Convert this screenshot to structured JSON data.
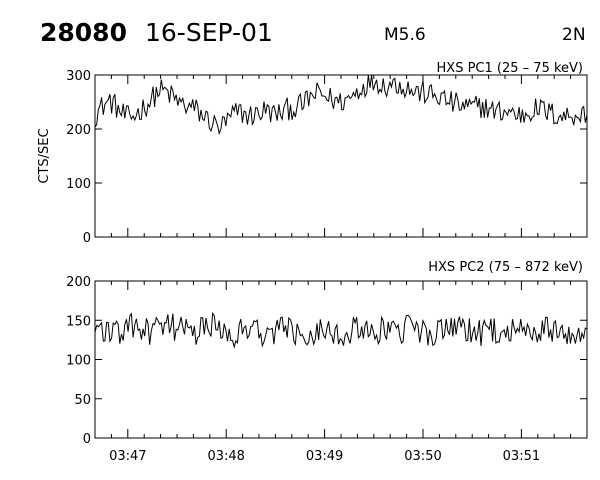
{
  "header": {
    "event_id": "28080",
    "date": "16-SEP-01",
    "flare_class": "M5.6",
    "location": "2N"
  },
  "chart_data": [
    {
      "type": "line",
      "title": "HXS PC1 (25 – 75 keV)",
      "ylabel": "CTS/SEC",
      "xlabel": "",
      "xlim": [
        "03:46:40",
        "03:51:40"
      ],
      "ylim": [
        0,
        300
      ],
      "yticks": [
        0,
        100,
        200,
        300
      ],
      "xticks": [
        "03:47",
        "03:48",
        "03:49",
        "03:50",
        "03:51"
      ],
      "grid": false,
      "series": [
        {
          "values": [
            225,
            238,
            246,
            252,
            244,
            232,
            224,
            220,
            226,
            233,
            242,
            250,
            262,
            272,
            270,
            264,
            256,
            248,
            244,
            240,
            238,
            230,
            222,
            216,
            208,
            203,
            208,
            218,
            228,
            232,
            228,
            224,
            226,
            230,
            234,
            232,
            228,
            228,
            232,
            238,
            238,
            242,
            246,
            256,
            262,
            266,
            262,
            258,
            254,
            250,
            252,
            256,
            264,
            272,
            280,
            286,
            290,
            288,
            282,
            282,
            284,
            284,
            279,
            276,
            270,
            268,
            268,
            264,
            262,
            260,
            256,
            252,
            248,
            245,
            242,
            240,
            240,
            242,
            242,
            238,
            234,
            232,
            232,
            233,
            230,
            226,
            226,
            230,
            236,
            237,
            236,
            232,
            228,
            226,
            224,
            224,
            226,
            228,
            226,
            226
          ]
        }
      ]
    },
    {
      "type": "line",
      "title": "HXS PC2 (75 – 872 keV)",
      "ylabel": "",
      "xlabel": "",
      "xlim": [
        "03:46:40",
        "03:51:40"
      ],
      "ylim": [
        0,
        200
      ],
      "yticks": [
        0,
        50,
        100,
        150,
        200
      ],
      "xticks": [
        "03:47",
        "03:48",
        "03:49",
        "03:50",
        "03:51"
      ],
      "grid": false,
      "series": [
        {
          "values": [
            138,
            140,
            138,
            135,
            132,
            135,
            138,
            140,
            142,
            140,
            136,
            134,
            136,
            138,
            140,
            142,
            141,
            138,
            136,
            135,
            134,
            136,
            138,
            141,
            143,
            140,
            137,
            135,
            134,
            136,
            138,
            140,
            138,
            136,
            134,
            135,
            137,
            139,
            140,
            138,
            136,
            134,
            133,
            134,
            136,
            138,
            140,
            139,
            137,
            135,
            134,
            134,
            136,
            138,
            140,
            141,
            139,
            137,
            135,
            134,
            133,
            135,
            137,
            139,
            140,
            139,
            137,
            135,
            133,
            133,
            134,
            136,
            138,
            139,
            140,
            138,
            136,
            134,
            132,
            133,
            135,
            137,
            138,
            139,
            137,
            135,
            133,
            132,
            134,
            136,
            138,
            139,
            138,
            136,
            134,
            133,
            134,
            136,
            138,
            139
          ]
        }
      ]
    }
  ]
}
